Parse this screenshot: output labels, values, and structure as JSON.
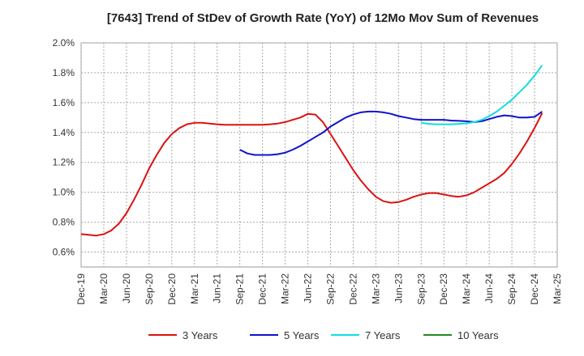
{
  "chart_data": {
    "type": "line",
    "title": "[7643]  Trend of StDev of Growth Rate (YoY) of 12Mo Mov Sum of Revenues",
    "xlabel": "",
    "ylabel": "",
    "ylim": [
      0.5,
      2.0
    ],
    "grid": true,
    "legend_position": "bottom",
    "x_ticks": [
      "Dec-19",
      "Mar-20",
      "Jun-20",
      "Sep-20",
      "Dec-20",
      "Mar-21",
      "Jun-21",
      "Sep-21",
      "Dec-21",
      "Mar-22",
      "Jun-22",
      "Sep-22",
      "Dec-22",
      "Mar-23",
      "Jun-23",
      "Sep-23",
      "Dec-23",
      "Mar-24",
      "Jun-24",
      "Sep-24",
      "Dec-24",
      "Mar-25"
    ],
    "y_ticks": [
      {
        "value": 0.6,
        "label": "0.6%"
      },
      {
        "value": 0.8,
        "label": "0.8%"
      },
      {
        "value": 1.0,
        "label": "1.0%"
      },
      {
        "value": 1.2,
        "label": "1.2%"
      },
      {
        "value": 1.4,
        "label": "1.4%"
      },
      {
        "value": 1.6,
        "label": "1.6%"
      },
      {
        "value": 1.8,
        "label": "1.8%"
      },
      {
        "value": 2.0,
        "label": "2.0%"
      }
    ],
    "series": [
      {
        "name": "3 Years",
        "color": "#dd1111",
        "values": [
          0.72,
          0.715,
          0.71,
          0.72,
          0.745,
          0.79,
          0.86,
          0.95,
          1.05,
          1.16,
          1.25,
          1.33,
          1.39,
          1.43,
          1.455,
          1.465,
          1.465,
          1.46,
          1.455,
          1.452,
          1.452,
          1.452,
          1.452,
          1.452,
          1.452,
          1.455,
          1.46,
          1.47,
          1.485,
          1.5,
          1.525,
          1.52,
          1.47,
          1.39,
          1.31,
          1.23,
          1.15,
          1.08,
          1.02,
          0.97,
          0.94,
          0.93,
          0.935,
          0.95,
          0.97,
          0.985,
          0.995,
          0.995,
          0.985,
          0.975,
          0.97,
          0.98,
          1.0,
          1.03,
          1.06,
          1.09,
          1.13,
          1.19,
          1.26,
          1.34,
          1.43,
          1.53
        ]
      },
      {
        "name": "5 Years",
        "color": "#1111cc",
        "values": [
          null,
          null,
          null,
          null,
          null,
          null,
          null,
          null,
          null,
          null,
          null,
          null,
          null,
          null,
          null,
          null,
          null,
          null,
          null,
          null,
          null,
          1.285,
          1.26,
          1.25,
          1.25,
          1.25,
          1.255,
          1.265,
          1.285,
          1.31,
          1.34,
          1.37,
          1.4,
          1.44,
          1.47,
          1.5,
          1.52,
          1.535,
          1.54,
          1.54,
          1.535,
          1.525,
          1.51,
          1.5,
          1.49,
          1.485,
          1.485,
          1.485,
          1.485,
          1.48,
          1.478,
          1.475,
          1.47,
          1.475,
          1.49,
          1.505,
          1.515,
          1.51,
          1.5,
          1.5,
          1.505,
          1.54
        ]
      },
      {
        "name": "7 Years",
        "color": "#11dddd",
        "values": [
          null,
          null,
          null,
          null,
          null,
          null,
          null,
          null,
          null,
          null,
          null,
          null,
          null,
          null,
          null,
          null,
          null,
          null,
          null,
          null,
          null,
          null,
          null,
          null,
          null,
          null,
          null,
          null,
          null,
          null,
          null,
          null,
          null,
          null,
          null,
          null,
          null,
          null,
          null,
          null,
          null,
          null,
          null,
          null,
          null,
          1.465,
          1.458,
          1.455,
          1.455,
          1.455,
          1.458,
          1.462,
          1.47,
          1.485,
          1.51,
          1.54,
          1.58,
          1.62,
          1.67,
          1.72,
          1.78,
          1.85
        ]
      },
      {
        "name": "10 Years",
        "color": "#228822",
        "values": []
      }
    ]
  }
}
